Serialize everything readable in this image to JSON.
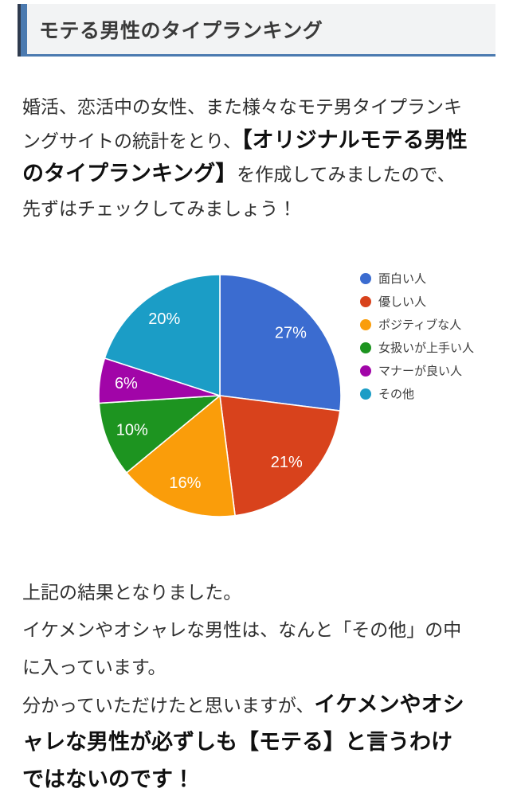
{
  "header": {
    "title": "モテる男性のタイプランキング"
  },
  "intro": {
    "text_before_bold": "婚活、恋活中の女性、また様々なモテ男タイプランキングサイトの統計をとり、",
    "bold_text": "【オリジナルモテる男性のタイプランキング】",
    "text_after_bold": "を作成してみましたので、先ずはチェックしてみましょう！"
  },
  "chart_data": {
    "type": "pie",
    "title": "",
    "categories": [
      "面白い人",
      "優しい人",
      "ポジティブな人",
      "女扱いが上手い人",
      "マナーが良い人",
      "その他"
    ],
    "values": [
      27,
      21,
      16,
      10,
      6,
      20
    ],
    "slice_labels": [
      "27%",
      "21%",
      "16%",
      "10%",
      "6%",
      "20%"
    ],
    "colors": [
      "#3b6cd0",
      "#d8421c",
      "#fa9d0a",
      "#1d9420",
      "#a105a8",
      "#1b9dc6"
    ],
    "start_angle_deg": 0,
    "direction": "clockwise",
    "legend_position": "right",
    "slice_label_color": "#ffffff",
    "slice_border_color": "#ffffff"
  },
  "outro": {
    "line1": "上記の結果となりました。",
    "line2": "イケメンやオシャレな男性は、なんと「その他」の中に入っています。",
    "line3_before_bold": "分かっていただけたと思いますが、",
    "line3_bold": "イケメンやオシャレな男性が必ずしも【モテる】と言うわけではないのです！"
  },
  "theme": {
    "accent_blue": "#4b7ab0",
    "accent_dark": "#2f3b4e",
    "header_bg": "#f2f3f4",
    "text_color": "#2f2f2f"
  }
}
